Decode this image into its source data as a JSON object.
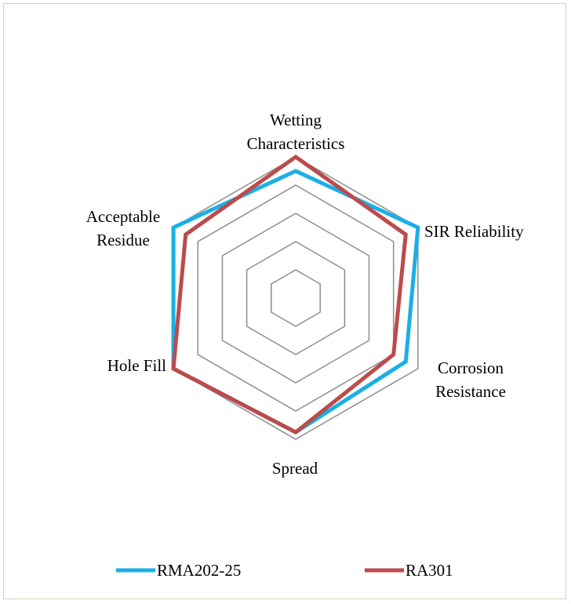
{
  "chart_data": {
    "type": "radar",
    "axes": [
      {
        "key": "wetting",
        "lines": [
          "Wetting",
          "Characteristics"
        ]
      },
      {
        "key": "sir",
        "lines": [
          "SIR Reliability"
        ]
      },
      {
        "key": "corrosion",
        "lines": [
          "Corrosion",
          "Resistance"
        ]
      },
      {
        "key": "spread",
        "lines": [
          "Spread"
        ]
      },
      {
        "key": "holefill",
        "lines": [
          "Hole Fill"
        ]
      },
      {
        "key": "residue",
        "lines": [
          "Acceptable",
          "Residue"
        ]
      }
    ],
    "rlim": [
      0,
      5
    ],
    "rings": 5,
    "series": [
      {
        "name": "RMA202-25",
        "color": "#1aafe6",
        "values": [
          4.5,
          5.0,
          4.5,
          4.75,
          5.0,
          5.0
        ]
      },
      {
        "name": "RA301",
        "color": "#bc4b4b",
        "values": [
          5.0,
          4.5,
          4.0,
          4.75,
          5.0,
          4.5
        ]
      }
    ],
    "legend": "bottom",
    "grid_color": "#8c8c8c"
  }
}
